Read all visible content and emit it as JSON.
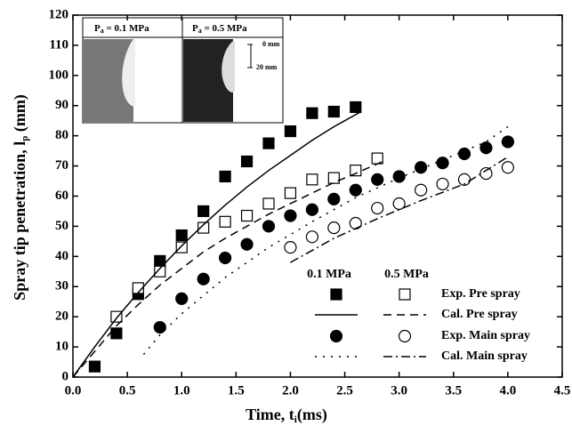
{
  "chart_data": {
    "type": "line",
    "x_label": {
      "main": "Time, t",
      "sub": "i",
      "tail": "(ms)"
    },
    "y_label": {
      "main": "Spray tip penetration, l",
      "sub": "p",
      "tail": " (mm)"
    },
    "xlim": [
      0,
      4.5
    ],
    "ylim": [
      0,
      120
    ],
    "xticks": [
      {
        "value": 0,
        "label": "0.0"
      },
      0.5,
      {
        "value": 1,
        "label": "1.0"
      },
      1.5,
      {
        "value": 2,
        "label": "2.0"
      },
      2.5,
      {
        "value": 3,
        "label": "3.0"
      },
      3.5,
      {
        "value": 4,
        "label": "4.0"
      },
      4.5
    ],
    "yticks": [
      0,
      10,
      20,
      30,
      40,
      50,
      60,
      70,
      80,
      90,
      100,
      110,
      120
    ],
    "legend": {
      "columns": [
        "0.1 MPa",
        "0.5 MPa"
      ],
      "rows": [
        "Exp. Pre spray",
        "Cal. Pre spray",
        "Exp. Main spray",
        "Cal. Main spray"
      ]
    },
    "inset": {
      "panels": [
        {
          "symbol": "P",
          "sub": "a",
          "text": " = 0.1 MPa"
        },
        {
          "symbol": "P",
          "sub": "a",
          "text": " = 0.5 MPa"
        }
      ],
      "scale": [
        "0 mm",
        "20 mm"
      ]
    },
    "series": [
      {
        "mode": "markers",
        "marker": "square",
        "filled": true,
        "color": "#000000",
        "legend_row": 0,
        "legend_col": 0,
        "x": [
          0.2,
          0.4,
          0.6,
          0.8,
          1.0,
          1.2,
          1.4,
          1.6,
          1.8,
          2.0,
          2.2,
          2.4,
          2.6
        ],
        "y": [
          3.5,
          14.5,
          27.5,
          38.5,
          47,
          55,
          66.5,
          71.5,
          77.5,
          81.5,
          87.5,
          88,
          89.5
        ]
      },
      {
        "mode": "markers",
        "marker": "square",
        "filled": false,
        "color": "#000000",
        "legend_row": 0,
        "legend_col": 1,
        "x": [
          0.4,
          0.6,
          0.8,
          1.0,
          1.2,
          1.4,
          1.6,
          1.8,
          2.0,
          2.2,
          2.4,
          2.6,
          2.8
        ],
        "y": [
          20,
          29.5,
          35,
          43,
          49.5,
          51.5,
          53.5,
          57.5,
          61,
          65.5,
          66,
          68.5,
          72.5
        ]
      },
      {
        "mode": "line",
        "dash": "solid",
        "color": "#000000",
        "legend_row": 1,
        "legend_col": 0,
        "x": [
          0,
          0.2,
          0.4,
          0.6,
          0.8,
          1.0,
          1.2,
          1.4,
          1.6,
          1.8,
          2.0,
          2.2,
          2.4,
          2.65
        ],
        "y": [
          0,
          10,
          19.5,
          28,
          36,
          43.5,
          50.5,
          57,
          63,
          68.5,
          73.5,
          78.5,
          83,
          88
        ]
      },
      {
        "mode": "line",
        "dash": "dashed",
        "color": "#000000",
        "legend_row": 1,
        "legend_col": 1,
        "x": [
          0,
          0.2,
          0.4,
          0.6,
          0.8,
          1.0,
          1.2,
          1.4,
          1.6,
          1.8,
          2.0,
          2.2,
          2.4,
          2.6,
          2.85
        ],
        "y": [
          0,
          8.5,
          17,
          24,
          30.5,
          36,
          41.5,
          46,
          50,
          54,
          57.5,
          61,
          64.5,
          67.5,
          71.5
        ]
      },
      {
        "mode": "markers",
        "marker": "circle",
        "filled": true,
        "color": "#000000",
        "legend_row": 2,
        "legend_col": 0,
        "x": [
          0.8,
          1.0,
          1.2,
          1.4,
          1.6,
          1.8,
          2.0,
          2.2,
          2.4,
          2.6,
          2.8,
          3.0,
          3.2,
          3.4,
          3.6,
          3.8,
          4.0
        ],
        "y": [
          16.5,
          26,
          32.5,
          39.5,
          44,
          50,
          53.5,
          55.5,
          59,
          62,
          65.5,
          66.5,
          69.5,
          71,
          74,
          76,
          78
        ]
      },
      {
        "mode": "markers",
        "marker": "circle",
        "filled": false,
        "color": "#000000",
        "legend_row": 2,
        "legend_col": 1,
        "x": [
          2.0,
          2.2,
          2.4,
          2.6,
          2.8,
          3.0,
          3.2,
          3.4,
          3.6,
          3.8,
          4.0
        ],
        "y": [
          43,
          46.5,
          49.5,
          51,
          56,
          57.5,
          62,
          64,
          65.5,
          67.5,
          69.5
        ]
      },
      {
        "mode": "line",
        "dash": "dotted",
        "color": "#000000",
        "legend_row": 3,
        "legend_col": 0,
        "x": [
          0.65,
          0.8,
          1.0,
          1.4,
          1.8,
          2.2,
          2.6,
          3.0,
          3.4,
          3.8,
          4.0
        ],
        "y": [
          7.5,
          14,
          21,
          33,
          43,
          51.5,
          59.5,
          66,
          72,
          78,
          83
        ]
      },
      {
        "mode": "line",
        "dash": "dashdot",
        "color": "#000000",
        "legend_row": 3,
        "legend_col": 1,
        "x": [
          2.0,
          2.4,
          2.8,
          3.2,
          3.6,
          4.0
        ],
        "y": [
          38,
          46,
          52.5,
          58.5,
          64,
          73
        ]
      }
    ]
  }
}
